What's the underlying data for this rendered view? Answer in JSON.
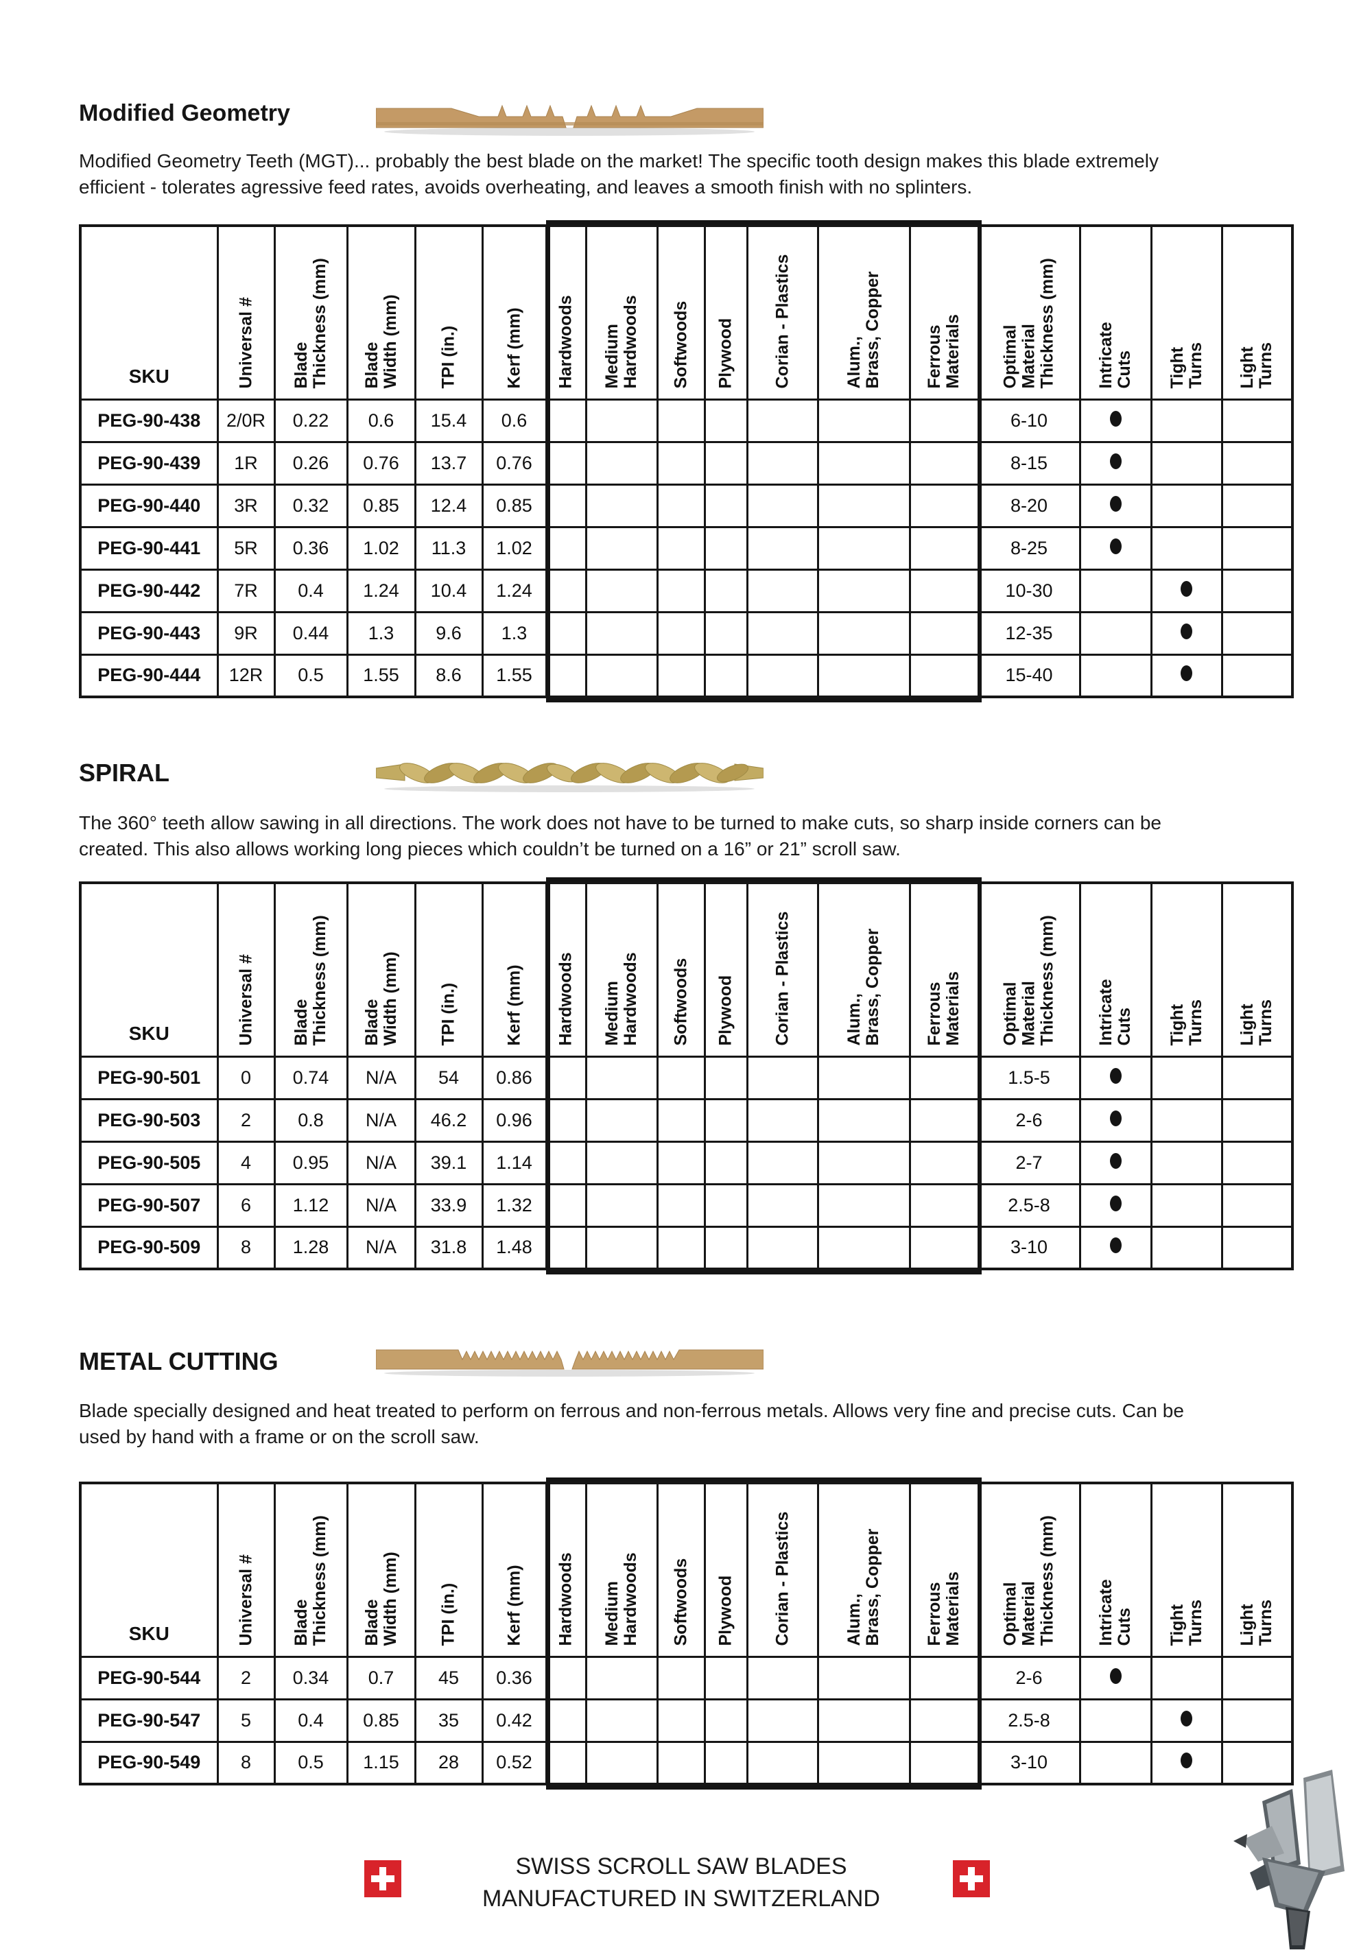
{
  "colors": {
    "rating_good": "#85c57e",
    "rating_ok": "#faf06e",
    "rating_bad": "#dc6a51",
    "swiss_flag_red": "#d8232a",
    "blade_tan": "#c49a66",
    "spiral_gold": "#c2ab62",
    "metal_tan": "#c5a06b"
  },
  "columns": [
    "SKU",
    "Universal #",
    "Blade\nThickness (mm)",
    "Blade\nWidth (mm)",
    "TPI (in.)",
    "Kerf (mm)",
    "Hardwoods",
    "Medium\nHardwoods",
    "Softwoods",
    "Plywood",
    "Corian  - Plastics",
    "Alum.,\nBrass, Copper",
    "Ferrous\nMaterials",
    "Optimal\nMaterial\nThickness (mm)",
    "Intricate\nCuts",
    "Tight\nTurns",
    "Light\nTurns"
  ],
  "sections": [
    {
      "title": "Modified Geometry",
      "description": "Modified Geometry Teeth (MGT)... probably the best blade on the market! The specific tooth design makes this blade extremely\nefficient - tolerates agressive feed rates, avoids overheating, and leaves a smooth finish with no splinters.",
      "rows": [
        {
          "sku": "PEG-90-438",
          "universal": "2/0R",
          "thickness": "0.22",
          "width": "0.6",
          "tpi": "15.4",
          "kerf": "0.6",
          "ratings": [
            "good",
            "good",
            "ok",
            "ok",
            "good",
            "bad",
            "bad"
          ],
          "optimal": "6-10",
          "mark": "intricate"
        },
        {
          "sku": "PEG-90-439",
          "universal": "1R",
          "thickness": "0.26",
          "width": "0.76",
          "tpi": "13.7",
          "kerf": "0.76",
          "ratings": [
            "good",
            "good",
            "ok",
            "ok",
            "good",
            "bad",
            "bad"
          ],
          "optimal": "8-15",
          "mark": "intricate"
        },
        {
          "sku": "PEG-90-440",
          "universal": "3R",
          "thickness": "0.32",
          "width": "0.85",
          "tpi": "12.4",
          "kerf": "0.85",
          "ratings": [
            "good",
            "good",
            "ok",
            "ok",
            "good",
            "bad",
            "bad"
          ],
          "optimal": "8-20",
          "mark": "intricate"
        },
        {
          "sku": "PEG-90-441",
          "universal": "5R",
          "thickness": "0.36",
          "width": "1.02",
          "tpi": "11.3",
          "kerf": "1.02",
          "ratings": [
            "good",
            "good",
            "ok",
            "ok",
            "good",
            "bad",
            "bad"
          ],
          "optimal": "8-25",
          "mark": "intricate"
        },
        {
          "sku": "PEG-90-442",
          "universal": "7R",
          "thickness": "0.4",
          "width": "1.24",
          "tpi": "10.4",
          "kerf": "1.24",
          "ratings": [
            "good",
            "good",
            "ok",
            "ok",
            "good",
            "bad",
            "bad"
          ],
          "optimal": "10-30",
          "mark": "tight"
        },
        {
          "sku": "PEG-90-443",
          "universal": "9R",
          "thickness": "0.44",
          "width": "1.3",
          "tpi": "9.6",
          "kerf": "1.3",
          "ratings": [
            "good",
            "good",
            "ok",
            "ok",
            "good",
            "bad",
            "bad"
          ],
          "optimal": "12-35",
          "mark": "tight"
        },
        {
          "sku": "PEG-90-444",
          "universal": "12R",
          "thickness": "0.5",
          "width": "1.55",
          "tpi": "8.6",
          "kerf": "1.55",
          "ratings": [
            "good",
            "good",
            "ok",
            "ok",
            "good",
            "bad",
            "bad"
          ],
          "optimal": "15-40",
          "mark": "tight"
        }
      ]
    },
    {
      "title": "SPIRAL",
      "description": "The 360° teeth allow sawing in all directions. The work does not have to be turned to make cuts, so sharp inside corners can be\ncreated. This also allows working long pieces which couldn’t be turned on a 16” or 21” scroll saw.",
      "rows": [
        {
          "sku": "PEG-90-501",
          "universal": "0",
          "thickness": "0.74",
          "width": "N/A",
          "tpi": "54",
          "kerf": "0.86",
          "ratings": [
            "bad",
            "ok",
            "good",
            "good",
            "ok",
            "ok",
            "bad"
          ],
          "optimal": "1.5-5",
          "mark": "intricate"
        },
        {
          "sku": "PEG-90-503",
          "universal": "2",
          "thickness": "0.8",
          "width": "N/A",
          "tpi": "46.2",
          "kerf": "0.96",
          "ratings": [
            "bad",
            "ok",
            "good",
            "good",
            "ok",
            "ok",
            "bad"
          ],
          "optimal": "2-6",
          "mark": "intricate"
        },
        {
          "sku": "PEG-90-505",
          "universal": "4",
          "thickness": "0.95",
          "width": "N/A",
          "tpi": "39.1",
          "kerf": "1.14",
          "ratings": [
            "bad",
            "ok",
            "good",
            "good",
            "ok",
            "ok",
            "bad"
          ],
          "optimal": "2-7",
          "mark": "intricate"
        },
        {
          "sku": "PEG-90-507",
          "universal": "6",
          "thickness": "1.12",
          "width": "N/A",
          "tpi": "33.9",
          "kerf": "1.32",
          "ratings": [
            "bad",
            "ok",
            "good",
            "good",
            "ok",
            "ok",
            "bad"
          ],
          "optimal": "2.5-8",
          "mark": "intricate"
        },
        {
          "sku": "PEG-90-509",
          "universal": "8",
          "thickness": "1.28",
          "width": "N/A",
          "tpi": "31.8",
          "kerf": "1.48",
          "ratings": [
            "bad",
            "ok",
            "good",
            "good",
            "ok",
            "ok",
            "bad"
          ],
          "optimal": "3-10",
          "mark": "intricate"
        }
      ]
    },
    {
      "title": "METAL CUTTING",
      "description": "Blade specially designed and heat treated to perform on ferrous and non-ferrous metals. Allows very fine and precise cuts. Can be\nused by hand with a frame or on the scroll saw.",
      "rows": [
        {
          "sku": "PEG-90-544",
          "universal": "2",
          "thickness": "0.34",
          "width": "0.7",
          "tpi": "45",
          "kerf": "0.36",
          "ratings": [
            "bad",
            "bad",
            "bad",
            "bad",
            "bad",
            "good",
            "good"
          ],
          "optimal": "2-6",
          "mark": "intricate"
        },
        {
          "sku": "PEG-90-547",
          "universal": "5",
          "thickness": "0.4",
          "width": "0.85",
          "tpi": "35",
          "kerf": "0.42",
          "ratings": [
            "bad",
            "bad",
            "bad",
            "bad",
            "bad",
            "good",
            "good"
          ],
          "optimal": "2.5-8",
          "mark": "tight"
        },
        {
          "sku": "PEG-90-549",
          "universal": "8",
          "thickness": "0.5",
          "width": "1.15",
          "tpi": "28",
          "kerf": "0.52",
          "ratings": [
            "bad",
            "bad",
            "bad",
            "bad",
            "bad",
            "good",
            "good"
          ],
          "optimal": "3-10",
          "mark": "tight"
        }
      ]
    }
  ],
  "footer": {
    "line1": "SWISS SCROLL SAW BLADES",
    "line2": "MANUFACTURED IN SWITZERLAND"
  }
}
